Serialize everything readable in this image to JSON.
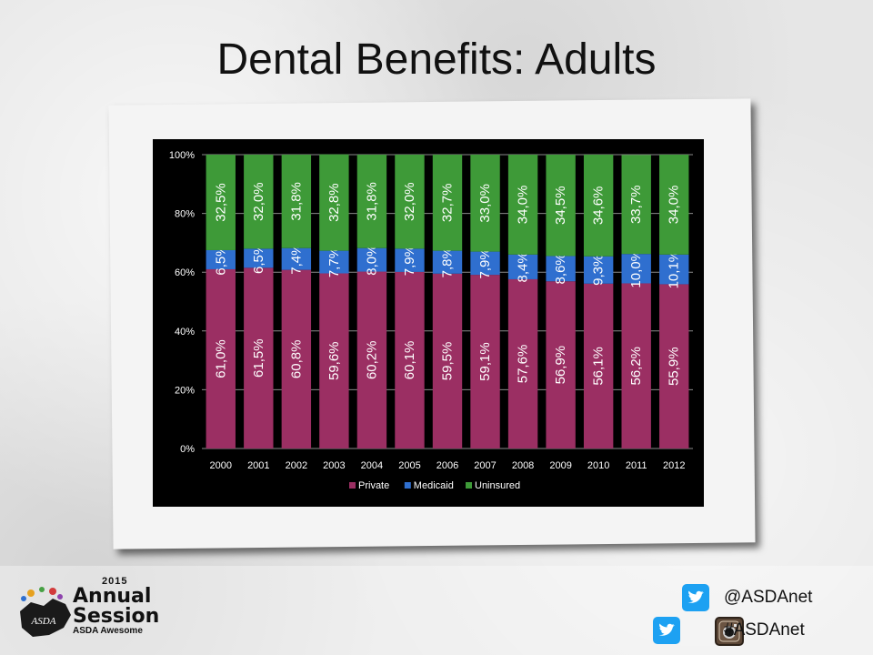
{
  "slide": {
    "title": "Dental Benefits: Adults"
  },
  "chart_data": {
    "type": "bar",
    "stacked": true,
    "normalized": true,
    "categories": [
      "2000",
      "2001",
      "2002",
      "2003",
      "2004",
      "2005",
      "2006",
      "2007",
      "2008",
      "2009",
      "2010",
      "2011",
      "2012"
    ],
    "series": [
      {
        "name": "Private",
        "color": "#9b2f63",
        "values": [
          61.0,
          61.5,
          60.8,
          59.6,
          60.2,
          60.1,
          59.5,
          59.1,
          57.6,
          56.9,
          56.1,
          56.2,
          55.9
        ],
        "labels": [
          "61,0%",
          "61,5%",
          "60,8%",
          "59,6%",
          "60,2%",
          "60,1%",
          "59,5%",
          "59,1%",
          "57,6%",
          "56,9%",
          "56,1%",
          "56,2%",
          "55,9%"
        ]
      },
      {
        "name": "Medicaid",
        "color": "#2f6fcf",
        "values": [
          6.5,
          6.5,
          7.4,
          7.7,
          8.0,
          7.9,
          7.8,
          7.9,
          8.4,
          8.6,
          9.3,
          10.0,
          10.1
        ],
        "labels": [
          "6,5%",
          "6,5%",
          "7,4%",
          "7,7%",
          "8,0%",
          "7,9%",
          "7,8%",
          "7,9%",
          "8,4%",
          "8,6%",
          "9,3%",
          "10,0%",
          "10,1%"
        ]
      },
      {
        "name": "Uninsured",
        "color": "#3e9a38",
        "values": [
          32.5,
          32.0,
          31.8,
          32.8,
          31.8,
          32.0,
          32.7,
          33.0,
          34.0,
          34.5,
          34.6,
          33.7,
          34.0
        ],
        "labels": [
          "32,5%",
          "32,0%",
          "31,8%",
          "32,8%",
          "31,8%",
          "32,0%",
          "32,7%",
          "33,0%",
          "34,0%",
          "34,5%",
          "34,6%",
          "33,7%",
          "34,0%"
        ]
      }
    ],
    "yticks": [
      "0%",
      "20%",
      "40%",
      "60%",
      "80%",
      "100%"
    ],
    "ylim": [
      0,
      100
    ],
    "grid": true,
    "legend": "bottom"
  },
  "logo": {
    "year": "2015",
    "line1": "Annual",
    "line2": "Session",
    "tagline": "ASDA Awesome",
    "badge": "ASDA"
  },
  "social": {
    "twitter_handle": "@ASDAnet",
    "hashtag": "#ASDAnet"
  }
}
